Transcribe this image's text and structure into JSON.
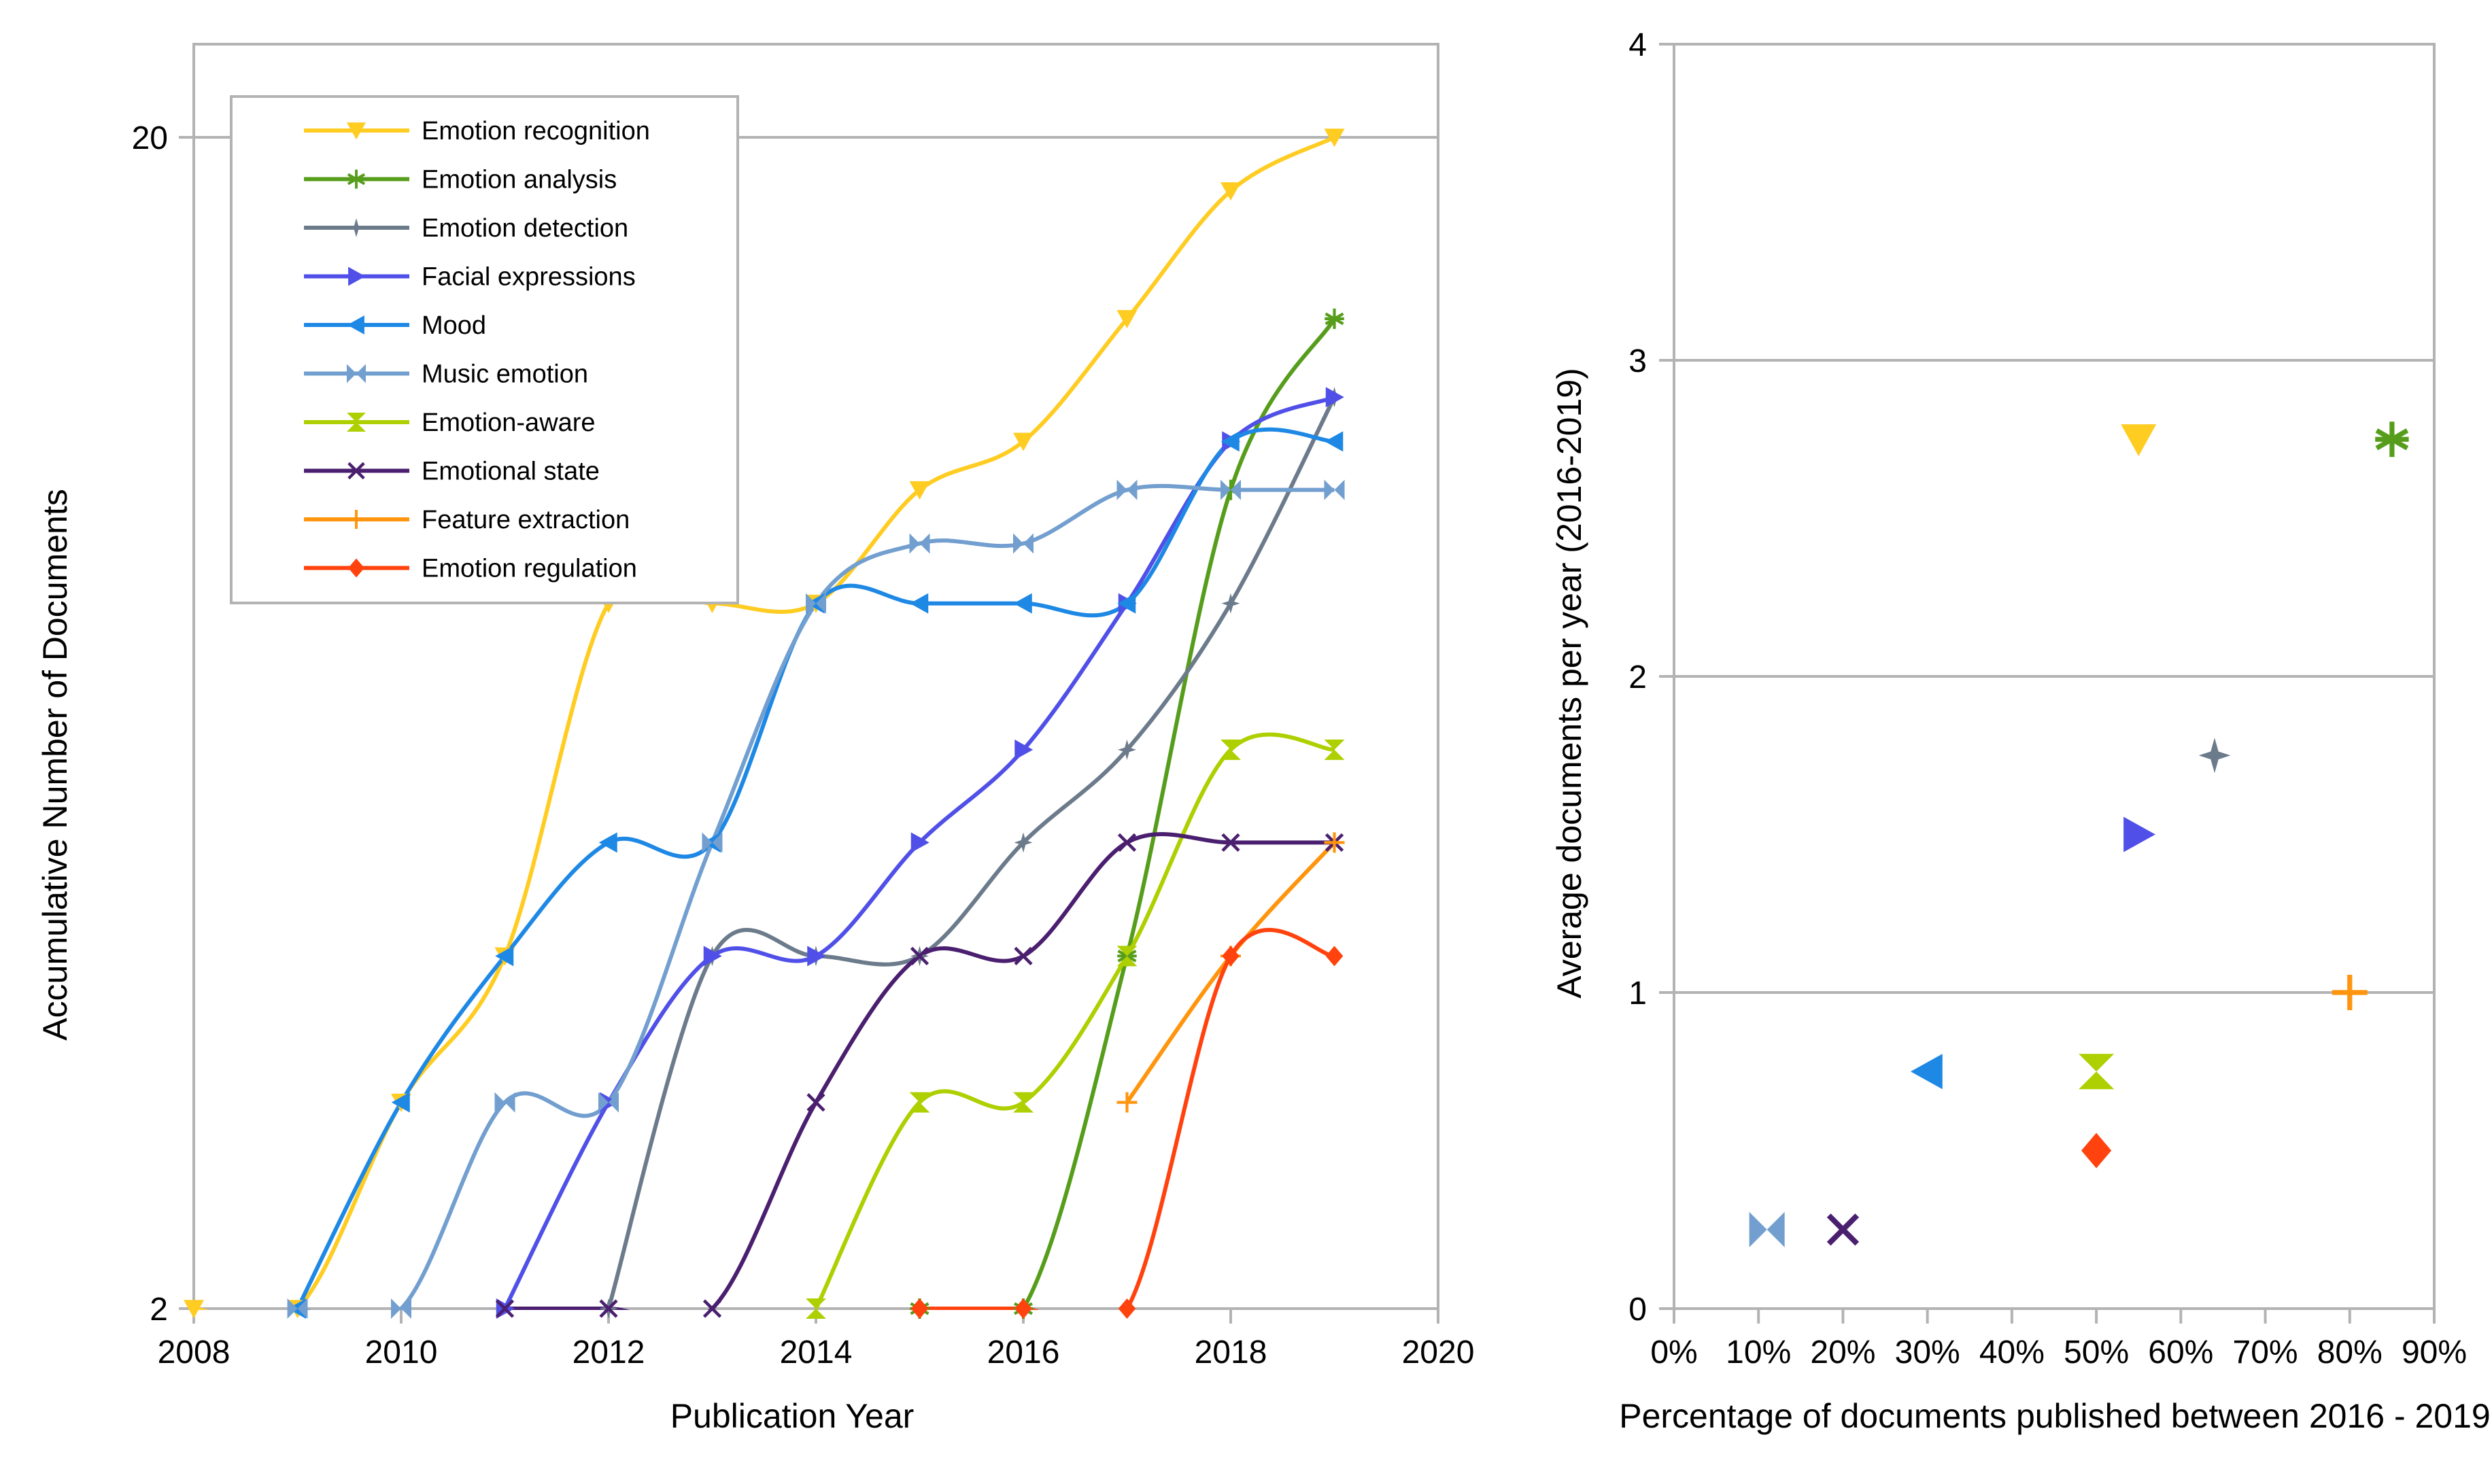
{
  "chart_data": [
    {
      "type": "line",
      "xlabel": "Publication Year",
      "ylabel": "Accumulative Number of Documents",
      "xlim": [
        2008,
        2020
      ],
      "ylim": [
        2,
        20
      ],
      "yscale": "log",
      "x_ticks": [
        "2008",
        "2010",
        "2012",
        "2014",
        "2016",
        "2018",
        "2020"
      ],
      "y_ticks": [
        "2",
        "20"
      ],
      "grid": "horizontal",
      "legend_position": "top-left",
      "series": [
        {
          "name": "Emotion recognition",
          "color": "#FFCC22",
          "marker": "triangle-down",
          "x": [
            2008,
            2009,
            2010,
            2011,
            2012,
            2013,
            2014,
            2015,
            2016,
            2017,
            2018,
            2019
          ],
          "y": [
            2,
            2,
            3,
            4,
            8,
            8,
            8,
            10,
            11,
            14,
            18,
            20
          ]
        },
        {
          "name": "Emotion analysis",
          "color": "#579D1C",
          "marker": "asterisk",
          "x": [
            2015,
            2016,
            2017,
            2018,
            2019
          ],
          "y": [
            2,
            2,
            4,
            10,
            14
          ]
        },
        {
          "name": "Emotion detection",
          "color": "#6C7B8B",
          "marker": "star",
          "x": [
            2012,
            2013,
            2014,
            2015,
            2016,
            2017,
            2018,
            2019
          ],
          "y": [
            2,
            4,
            4,
            4,
            5,
            6,
            8,
            12
          ]
        },
        {
          "name": "Facial expressions",
          "color": "#5050E8",
          "marker": "triangle-right",
          "x": [
            2011,
            2012,
            2013,
            2014,
            2015,
            2016,
            2017,
            2018,
            2019
          ],
          "y": [
            2,
            3,
            4,
            4,
            5,
            6,
            8,
            11,
            12
          ]
        },
        {
          "name": "Mood",
          "color": "#1E88E5",
          "marker": "triangle-left",
          "x": [
            2009,
            2010,
            2011,
            2012,
            2013,
            2014,
            2015,
            2016,
            2017,
            2018,
            2019
          ],
          "y": [
            2,
            3,
            4,
            5,
            5,
            8,
            8,
            8,
            8,
            11,
            11
          ]
        },
        {
          "name": "Music emotion",
          "color": "#729FCF",
          "marker": "bowtie",
          "x": [
            2009,
            2010,
            2011,
            2012,
            2013,
            2014,
            2015,
            2016,
            2017,
            2018,
            2019
          ],
          "y": [
            2,
            2,
            3,
            3,
            5,
            8,
            9,
            9,
            10,
            10,
            10
          ]
        },
        {
          "name": "Emotion-aware",
          "color": "#AECF00",
          "marker": "hourglass",
          "x": [
            2014,
            2015,
            2016,
            2017,
            2018,
            2019
          ],
          "y": [
            2,
            3,
            3,
            4,
            6,
            6
          ]
        },
        {
          "name": "Emotional state",
          "color": "#4B1F6F",
          "marker": "x",
          "x": [
            2011,
            2012,
            2013,
            2014,
            2015,
            2016,
            2017,
            2018,
            2019
          ],
          "y": [
            2,
            2,
            2,
            3,
            4,
            4,
            5,
            5,
            5
          ]
        },
        {
          "name": "Feature extraction",
          "color": "#FF950E",
          "marker": "plus",
          "x": [
            2017,
            2018,
            2019
          ],
          "y": [
            3,
            4,
            5
          ]
        },
        {
          "name": "Emotion regulation",
          "color": "#FF420E",
          "marker": "diamond",
          "x": [
            2015,
            2016,
            2017,
            2018,
            2019
          ],
          "y": [
            2,
            2,
            2,
            4,
            4
          ]
        }
      ]
    },
    {
      "type": "scatter",
      "xlabel": "Percentage of documents published between 2016 - 2019",
      "ylabel": "Average documents per year (2016-2019)",
      "xlim": [
        0,
        90
      ],
      "ylim": [
        0,
        4
      ],
      "x_ticks": [
        "0%",
        "10%",
        "20%",
        "30%",
        "40%",
        "50%",
        "60%",
        "70%",
        "80%",
        "90%"
      ],
      "y_ticks": [
        "0",
        "1",
        "2",
        "3",
        "4"
      ],
      "grid": "horizontal",
      "points": [
        {
          "series": "Emotion recognition",
          "x": 55,
          "y": 2.75
        },
        {
          "series": "Emotion analysis",
          "x": 85,
          "y": 2.75
        },
        {
          "series": "Emotion detection",
          "x": 64,
          "y": 1.75
        },
        {
          "series": "Facial expressions",
          "x": 55,
          "y": 1.5
        },
        {
          "series": "Mood",
          "x": 30,
          "y": 0.75
        },
        {
          "series": "Music emotion",
          "x": 11,
          "y": 0.25
        },
        {
          "series": "Emotion-aware",
          "x": 50,
          "y": 0.75
        },
        {
          "series": "Emotional state",
          "x": 20,
          "y": 0.25
        },
        {
          "series": "Feature extraction",
          "x": 80,
          "y": 1.0
        },
        {
          "series": "Emotion regulation",
          "x": 50,
          "y": 0.5
        }
      ]
    }
  ]
}
